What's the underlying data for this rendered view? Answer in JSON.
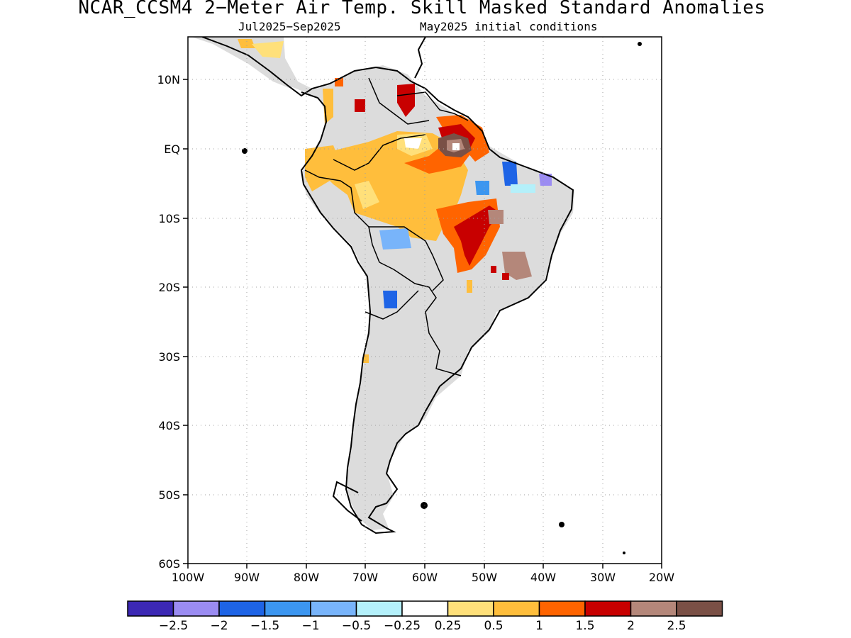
{
  "header": {
    "title": "NCAR_CCSM4 2−Meter Air Temp. Skill Masked Standard Anomalies",
    "period": "Jul2025−Sep2025",
    "init": "May2025 initial conditions"
  },
  "axes": {
    "lat_labels": [
      "10N",
      "EQ",
      "10S",
      "20S",
      "30S",
      "40S",
      "50S",
      "60S"
    ],
    "lon_labels": [
      "100W",
      "90W",
      "80W",
      "70W",
      "60W",
      "50W",
      "40W",
      "30W",
      "20W"
    ]
  },
  "colorbar": {
    "colors": [
      "#3c28b4",
      "#9b8cf2",
      "#1e64e6",
      "#3c96f0",
      "#78b4fa",
      "#b4f0fa",
      "#ffffff",
      "#ffe07a",
      "#ffbe3c",
      "#ff6400",
      "#c80000",
      "#b4877a",
      "#7a5046"
    ],
    "labels": [
      "−2.5",
      "−2",
      "−1.5",
      "−1",
      "−0.5",
      "−0.25",
      "0.25",
      "0.5",
      "1",
      "1.5",
      "2",
      "2.5"
    ]
  },
  "colors": {
    "land_mask": "#dcdcdc",
    "grid": "#a0a0a0"
  }
}
